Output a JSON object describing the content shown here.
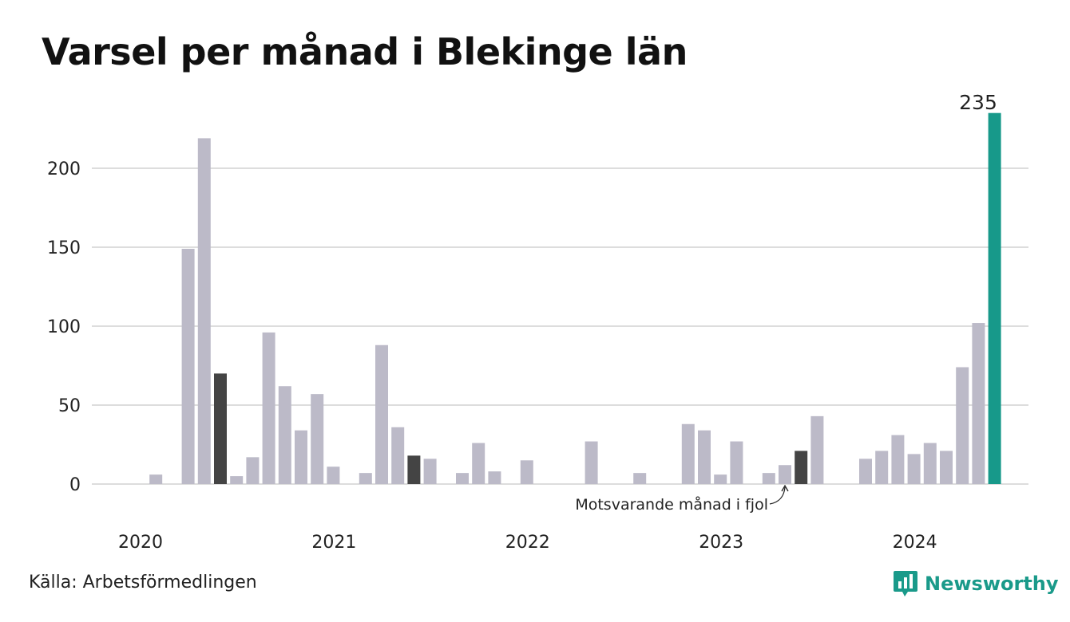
{
  "title": "Varsel per månad i Blekinge län",
  "source": "Källa: Arbetsförmedlingen",
  "brand": {
    "name": "Newsworthy",
    "color": "#1a9a8a",
    "icon": "bar-chart-speech-bubble-icon"
  },
  "colors": {
    "regular": "#bcbac8",
    "same_month_last_year": "#444444",
    "current": "#17998a",
    "grid": "#dddddd"
  },
  "chart_data": {
    "type": "bar",
    "title": "Varsel per månad i Blekinge län",
    "xlabel": "",
    "ylabel": "",
    "ylim": [
      0,
      235
    ],
    "yticks": [
      0,
      50,
      100,
      150,
      200
    ],
    "xticks": [
      {
        "label": "2020",
        "month_index": 0
      },
      {
        "label": "2021",
        "month_index": 12
      },
      {
        "label": "2022",
        "month_index": 24
      },
      {
        "label": "2023",
        "month_index": 36
      },
      {
        "label": "2024",
        "month_index": 48
      }
    ],
    "grid": true,
    "start": "2020-01",
    "values": [
      0,
      6,
      0,
      149,
      219,
      70,
      5,
      17,
      96,
      62,
      34,
      57,
      11,
      0,
      7,
      88,
      36,
      18,
      16,
      0,
      7,
      26,
      8,
      0,
      15,
      0,
      0,
      0,
      27,
      0,
      0,
      7,
      0,
      0,
      38,
      34,
      6,
      27,
      0,
      7,
      12,
      21,
      43,
      0,
      0,
      16,
      21,
      31,
      19,
      26,
      21,
      74,
      102,
      235
    ],
    "comparison_index": 41,
    "comparison_extra_indices": [
      5,
      17
    ],
    "current_index": 53,
    "current_label": "235",
    "annotation": "Motsvarande månad i fjol"
  }
}
